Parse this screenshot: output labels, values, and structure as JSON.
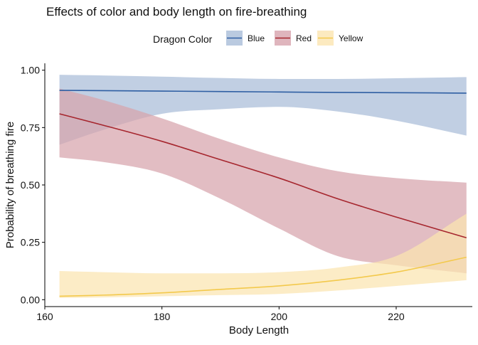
{
  "chart_data": {
    "type": "line",
    "title": "Effects of color and body length on fire-breathing",
    "xlabel": "Body Length",
    "ylabel": "Probability of breathing fire",
    "xlim": [
      160,
      233
    ],
    "ylim": [
      -0.03,
      1.03
    ],
    "x_ticks": [
      160,
      180,
      200,
      220
    ],
    "y_ticks": [
      0.0,
      0.25,
      0.5,
      0.75,
      1.0
    ],
    "y_tick_labels": [
      "0.00",
      "0.25",
      "0.50",
      "0.75",
      "1.00"
    ],
    "grid": false,
    "legend": {
      "title": "Dragon Color",
      "placement": "top",
      "entries": [
        "Blue",
        "Red",
        "Yellow"
      ]
    },
    "series": [
      {
        "name": "Blue",
        "color": "#2f5fa3",
        "fill": "#a9bdd8",
        "x": [
          162.5,
          170,
          180,
          190,
          200,
          210,
          220,
          232
        ],
        "y": [
          0.912,
          0.911,
          0.909,
          0.907,
          0.905,
          0.903,
          0.902,
          0.9
        ],
        "lower": [
          0.675,
          0.74,
          0.81,
          0.83,
          0.84,
          0.82,
          0.78,
          0.715
        ],
        "upper": [
          0.98,
          0.977,
          0.972,
          0.966,
          0.962,
          0.962,
          0.965,
          0.97
        ]
      },
      {
        "name": "Red",
        "color": "#a6262e",
        "fill": "#d7a3ac",
        "x": [
          162.5,
          170,
          180,
          190,
          200,
          210,
          220,
          232
        ],
        "y": [
          0.81,
          0.76,
          0.69,
          0.61,
          0.53,
          0.44,
          0.36,
          0.27
        ],
        "lower": [
          0.62,
          0.6,
          0.55,
          0.44,
          0.31,
          0.19,
          0.15,
          0.115
        ],
        "upper": [
          0.92,
          0.87,
          0.79,
          0.7,
          0.62,
          0.56,
          0.53,
          0.51
        ]
      },
      {
        "name": "Yellow",
        "color": "#f3c94c",
        "fill": "#fbe5b0",
        "x": [
          162.5,
          170,
          180,
          190,
          200,
          210,
          220,
          232
        ],
        "y": [
          0.015,
          0.02,
          0.03,
          0.045,
          0.06,
          0.085,
          0.12,
          0.185
        ],
        "lower": [
          0.008,
          0.01,
          0.015,
          0.02,
          0.025,
          0.04,
          0.06,
          0.085
        ],
        "upper": [
          0.125,
          0.12,
          0.115,
          0.115,
          0.12,
          0.14,
          0.19,
          0.375
        ]
      }
    ]
  }
}
